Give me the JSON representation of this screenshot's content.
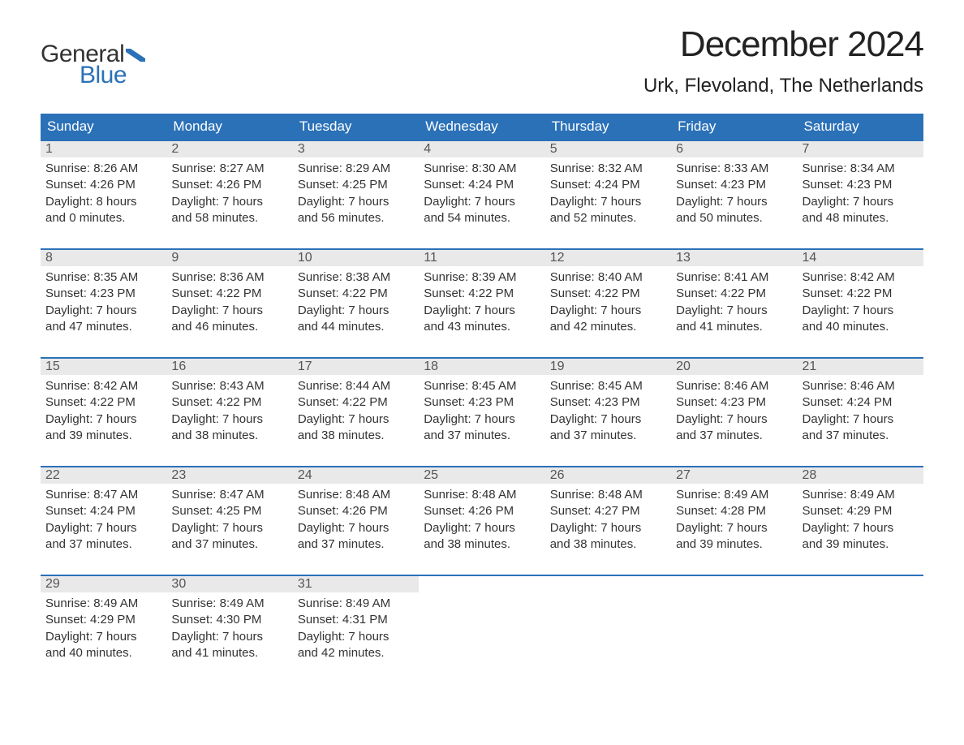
{
  "brand": {
    "part1": "General",
    "part2": "Blue",
    "color_primary": "#2b71b8",
    "color_text": "#333333"
  },
  "title": "December 2024",
  "location": "Urk, Flevoland, The Netherlands",
  "colors": {
    "header_bg": "#2b71b8",
    "header_text": "#ffffff",
    "daynum_bg": "#e9e9e9",
    "daynum_text": "#555555",
    "body_text": "#333333",
    "divider": "#2b71b8",
    "page_bg": "#ffffff"
  },
  "typography": {
    "title_fontsize": 44,
    "location_fontsize": 24,
    "dayheader_fontsize": 17,
    "body_fontsize": 15
  },
  "day_names": [
    "Sunday",
    "Monday",
    "Tuesday",
    "Wednesday",
    "Thursday",
    "Friday",
    "Saturday"
  ],
  "weeks": [
    [
      {
        "num": "1",
        "sunrise": "Sunrise: 8:26 AM",
        "sunset": "Sunset: 4:26 PM",
        "dl1": "Daylight: 8 hours",
        "dl2": "and 0 minutes."
      },
      {
        "num": "2",
        "sunrise": "Sunrise: 8:27 AM",
        "sunset": "Sunset: 4:26 PM",
        "dl1": "Daylight: 7 hours",
        "dl2": "and 58 minutes."
      },
      {
        "num": "3",
        "sunrise": "Sunrise: 8:29 AM",
        "sunset": "Sunset: 4:25 PM",
        "dl1": "Daylight: 7 hours",
        "dl2": "and 56 minutes."
      },
      {
        "num": "4",
        "sunrise": "Sunrise: 8:30 AM",
        "sunset": "Sunset: 4:24 PM",
        "dl1": "Daylight: 7 hours",
        "dl2": "and 54 minutes."
      },
      {
        "num": "5",
        "sunrise": "Sunrise: 8:32 AM",
        "sunset": "Sunset: 4:24 PM",
        "dl1": "Daylight: 7 hours",
        "dl2": "and 52 minutes."
      },
      {
        "num": "6",
        "sunrise": "Sunrise: 8:33 AM",
        "sunset": "Sunset: 4:23 PM",
        "dl1": "Daylight: 7 hours",
        "dl2": "and 50 minutes."
      },
      {
        "num": "7",
        "sunrise": "Sunrise: 8:34 AM",
        "sunset": "Sunset: 4:23 PM",
        "dl1": "Daylight: 7 hours",
        "dl2": "and 48 minutes."
      }
    ],
    [
      {
        "num": "8",
        "sunrise": "Sunrise: 8:35 AM",
        "sunset": "Sunset: 4:23 PM",
        "dl1": "Daylight: 7 hours",
        "dl2": "and 47 minutes."
      },
      {
        "num": "9",
        "sunrise": "Sunrise: 8:36 AM",
        "sunset": "Sunset: 4:22 PM",
        "dl1": "Daylight: 7 hours",
        "dl2": "and 46 minutes."
      },
      {
        "num": "10",
        "sunrise": "Sunrise: 8:38 AM",
        "sunset": "Sunset: 4:22 PM",
        "dl1": "Daylight: 7 hours",
        "dl2": "and 44 minutes."
      },
      {
        "num": "11",
        "sunrise": "Sunrise: 8:39 AM",
        "sunset": "Sunset: 4:22 PM",
        "dl1": "Daylight: 7 hours",
        "dl2": "and 43 minutes."
      },
      {
        "num": "12",
        "sunrise": "Sunrise: 8:40 AM",
        "sunset": "Sunset: 4:22 PM",
        "dl1": "Daylight: 7 hours",
        "dl2": "and 42 minutes."
      },
      {
        "num": "13",
        "sunrise": "Sunrise: 8:41 AM",
        "sunset": "Sunset: 4:22 PM",
        "dl1": "Daylight: 7 hours",
        "dl2": "and 41 minutes."
      },
      {
        "num": "14",
        "sunrise": "Sunrise: 8:42 AM",
        "sunset": "Sunset: 4:22 PM",
        "dl1": "Daylight: 7 hours",
        "dl2": "and 40 minutes."
      }
    ],
    [
      {
        "num": "15",
        "sunrise": "Sunrise: 8:42 AM",
        "sunset": "Sunset: 4:22 PM",
        "dl1": "Daylight: 7 hours",
        "dl2": "and 39 minutes."
      },
      {
        "num": "16",
        "sunrise": "Sunrise: 8:43 AM",
        "sunset": "Sunset: 4:22 PM",
        "dl1": "Daylight: 7 hours",
        "dl2": "and 38 minutes."
      },
      {
        "num": "17",
        "sunrise": "Sunrise: 8:44 AM",
        "sunset": "Sunset: 4:22 PM",
        "dl1": "Daylight: 7 hours",
        "dl2": "and 38 minutes."
      },
      {
        "num": "18",
        "sunrise": "Sunrise: 8:45 AM",
        "sunset": "Sunset: 4:23 PM",
        "dl1": "Daylight: 7 hours",
        "dl2": "and 37 minutes."
      },
      {
        "num": "19",
        "sunrise": "Sunrise: 8:45 AM",
        "sunset": "Sunset: 4:23 PM",
        "dl1": "Daylight: 7 hours",
        "dl2": "and 37 minutes."
      },
      {
        "num": "20",
        "sunrise": "Sunrise: 8:46 AM",
        "sunset": "Sunset: 4:23 PM",
        "dl1": "Daylight: 7 hours",
        "dl2": "and 37 minutes."
      },
      {
        "num": "21",
        "sunrise": "Sunrise: 8:46 AM",
        "sunset": "Sunset: 4:24 PM",
        "dl1": "Daylight: 7 hours",
        "dl2": "and 37 minutes."
      }
    ],
    [
      {
        "num": "22",
        "sunrise": "Sunrise: 8:47 AM",
        "sunset": "Sunset: 4:24 PM",
        "dl1": "Daylight: 7 hours",
        "dl2": "and 37 minutes."
      },
      {
        "num": "23",
        "sunrise": "Sunrise: 8:47 AM",
        "sunset": "Sunset: 4:25 PM",
        "dl1": "Daylight: 7 hours",
        "dl2": "and 37 minutes."
      },
      {
        "num": "24",
        "sunrise": "Sunrise: 8:48 AM",
        "sunset": "Sunset: 4:26 PM",
        "dl1": "Daylight: 7 hours",
        "dl2": "and 37 minutes."
      },
      {
        "num": "25",
        "sunrise": "Sunrise: 8:48 AM",
        "sunset": "Sunset: 4:26 PM",
        "dl1": "Daylight: 7 hours",
        "dl2": "and 38 minutes."
      },
      {
        "num": "26",
        "sunrise": "Sunrise: 8:48 AM",
        "sunset": "Sunset: 4:27 PM",
        "dl1": "Daylight: 7 hours",
        "dl2": "and 38 minutes."
      },
      {
        "num": "27",
        "sunrise": "Sunrise: 8:49 AM",
        "sunset": "Sunset: 4:28 PM",
        "dl1": "Daylight: 7 hours",
        "dl2": "and 39 minutes."
      },
      {
        "num": "28",
        "sunrise": "Sunrise: 8:49 AM",
        "sunset": "Sunset: 4:29 PM",
        "dl1": "Daylight: 7 hours",
        "dl2": "and 39 minutes."
      }
    ],
    [
      {
        "num": "29",
        "sunrise": "Sunrise: 8:49 AM",
        "sunset": "Sunset: 4:29 PM",
        "dl1": "Daylight: 7 hours",
        "dl2": "and 40 minutes."
      },
      {
        "num": "30",
        "sunrise": "Sunrise: 8:49 AM",
        "sunset": "Sunset: 4:30 PM",
        "dl1": "Daylight: 7 hours",
        "dl2": "and 41 minutes."
      },
      {
        "num": "31",
        "sunrise": "Sunrise: 8:49 AM",
        "sunset": "Sunset: 4:31 PM",
        "dl1": "Daylight: 7 hours",
        "dl2": "and 42 minutes."
      },
      {
        "empty": true
      },
      {
        "empty": true
      },
      {
        "empty": true
      },
      {
        "empty": true
      }
    ]
  ]
}
